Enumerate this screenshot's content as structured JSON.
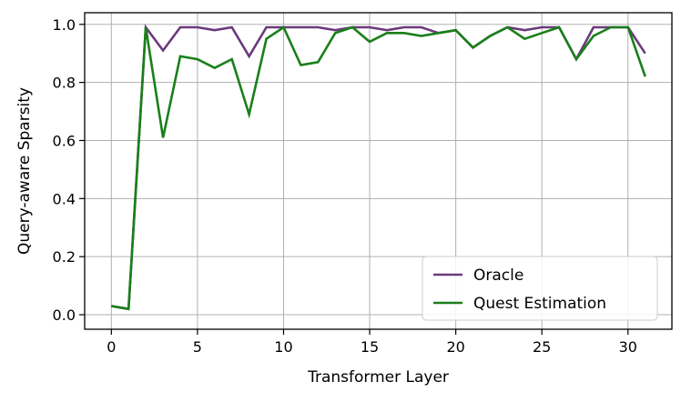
{
  "chart_data": {
    "type": "line",
    "xlabel": "Transformer Layer",
    "ylabel": "Query-aware Sparsity",
    "xlim": [
      -1.55,
      32.55
    ],
    "ylim": [
      -0.05,
      1.04
    ],
    "xticks": [
      0,
      5,
      10,
      15,
      20,
      25,
      30
    ],
    "yticks": [
      0.0,
      0.2,
      0.4,
      0.6,
      0.8,
      1.0
    ],
    "xtick_labels": [
      "0",
      "5",
      "10",
      "15",
      "20",
      "25",
      "30"
    ],
    "ytick_labels": [
      "0.0",
      "0.2",
      "0.4",
      "0.6",
      "0.8",
      "1.0"
    ],
    "grid": true,
    "legend_position": "lower-right",
    "x": [
      0,
      1,
      2,
      3,
      4,
      5,
      6,
      7,
      8,
      9,
      10,
      11,
      12,
      13,
      14,
      15,
      16,
      17,
      18,
      19,
      20,
      21,
      22,
      23,
      24,
      25,
      26,
      27,
      28,
      29,
      30,
      31
    ],
    "series": [
      {
        "name": "Oracle",
        "color": "#6b3a7d",
        "values": [
          0.03,
          0.02,
          0.99,
          0.91,
          0.99,
          0.99,
          0.98,
          0.99,
          0.89,
          0.99,
          0.99,
          0.99,
          0.99,
          0.98,
          0.99,
          0.99,
          0.98,
          0.99,
          0.99,
          0.97,
          0.98,
          0.92,
          0.96,
          0.99,
          0.98,
          0.99,
          0.99,
          0.88,
          0.99,
          0.99,
          0.99,
          0.9
        ]
      },
      {
        "name": "Quest Estimation",
        "color": "#1a7f1a",
        "values": [
          0.03,
          0.02,
          0.99,
          0.61,
          0.89,
          0.88,
          0.85,
          0.88,
          0.69,
          0.95,
          0.99,
          0.86,
          0.87,
          0.97,
          0.99,
          0.94,
          0.97,
          0.97,
          0.96,
          0.97,
          0.98,
          0.92,
          0.96,
          0.99,
          0.95,
          0.97,
          0.99,
          0.88,
          0.96,
          0.99,
          0.99,
          0.82
        ]
      }
    ]
  }
}
